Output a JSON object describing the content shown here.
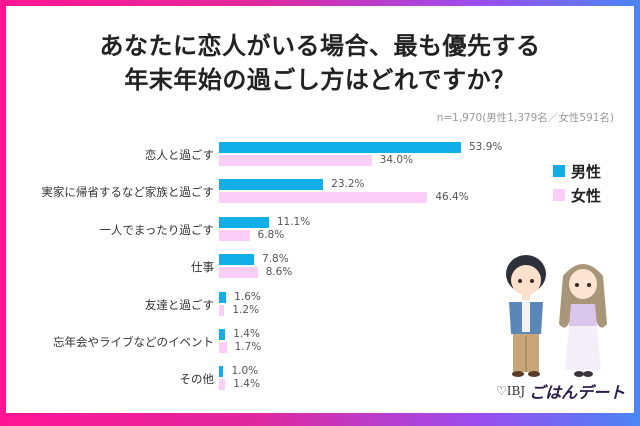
{
  "title": {
    "line1": "あなたに恋人がいる場合、最も優先する",
    "line2": "年末年始の過ごし方はどれですか？"
  },
  "sample_note": "n=1,970(男性1,379名／女性591名)",
  "legend": {
    "male": {
      "label": "男性",
      "color": "#11aee8"
    },
    "female": {
      "label": "女性",
      "color": "#fccdf6"
    }
  },
  "logo": {
    "ibj": "♡IBJ",
    "brand": "ごはんデート"
  },
  "rows": [
    {
      "label": "恋人と過ごす",
      "male": 53.9,
      "female": 34.0,
      "male_text": "53.9%",
      "female_text": "34.0%"
    },
    {
      "label": "実家に帰省するなど家族と過ごす",
      "male": 23.2,
      "female": 46.4,
      "male_text": "23.2%",
      "female_text": "46.4%"
    },
    {
      "label": "一人でまったり過ごす",
      "male": 11.1,
      "female": 6.8,
      "male_text": "11.1%",
      "female_text": "6.8%"
    },
    {
      "label": "仕事",
      "male": 7.8,
      "female": 8.6,
      "male_text": "7.8%",
      "female_text": "8.6%"
    },
    {
      "label": "友達と過ごす",
      "male": 1.6,
      "female": 1.2,
      "male_text": "1.6%",
      "female_text": "1.2%"
    },
    {
      "label": "忘年会やライブなどのイベント",
      "male": 1.4,
      "female": 1.7,
      "male_text": "1.4%",
      "female_text": "1.7%"
    },
    {
      "label": "その他",
      "male": 1.0,
      "female": 1.4,
      "male_text": "1.0%",
      "female_text": "1.4%"
    }
  ],
  "chart_data": {
    "type": "bar",
    "orientation": "horizontal",
    "title": "あなたに恋人がいる場合、最も優先する年末年始の過ごし方はどれですか？",
    "subtitle": "n=1,970(男性1,379名／女性591名)",
    "categories": [
      "恋人と過ごす",
      "実家に帰省するなど家族と過ごす",
      "一人でまったり過ごす",
      "仕事",
      "友達と過ごす",
      "忘年会やライブなどのイベント",
      "その他"
    ],
    "series": [
      {
        "name": "男性",
        "color": "#11aee8",
        "values": [
          53.9,
          23.2,
          11.1,
          7.8,
          1.6,
          1.4,
          1.0
        ]
      },
      {
        "name": "女性",
        "color": "#fccdf6",
        "values": [
          34.0,
          46.4,
          6.8,
          8.6,
          1.2,
          1.7,
          1.4
        ]
      }
    ],
    "unit": "%",
    "xlabel": "",
    "ylabel": "",
    "grid": false,
    "legend_position": "right"
  }
}
